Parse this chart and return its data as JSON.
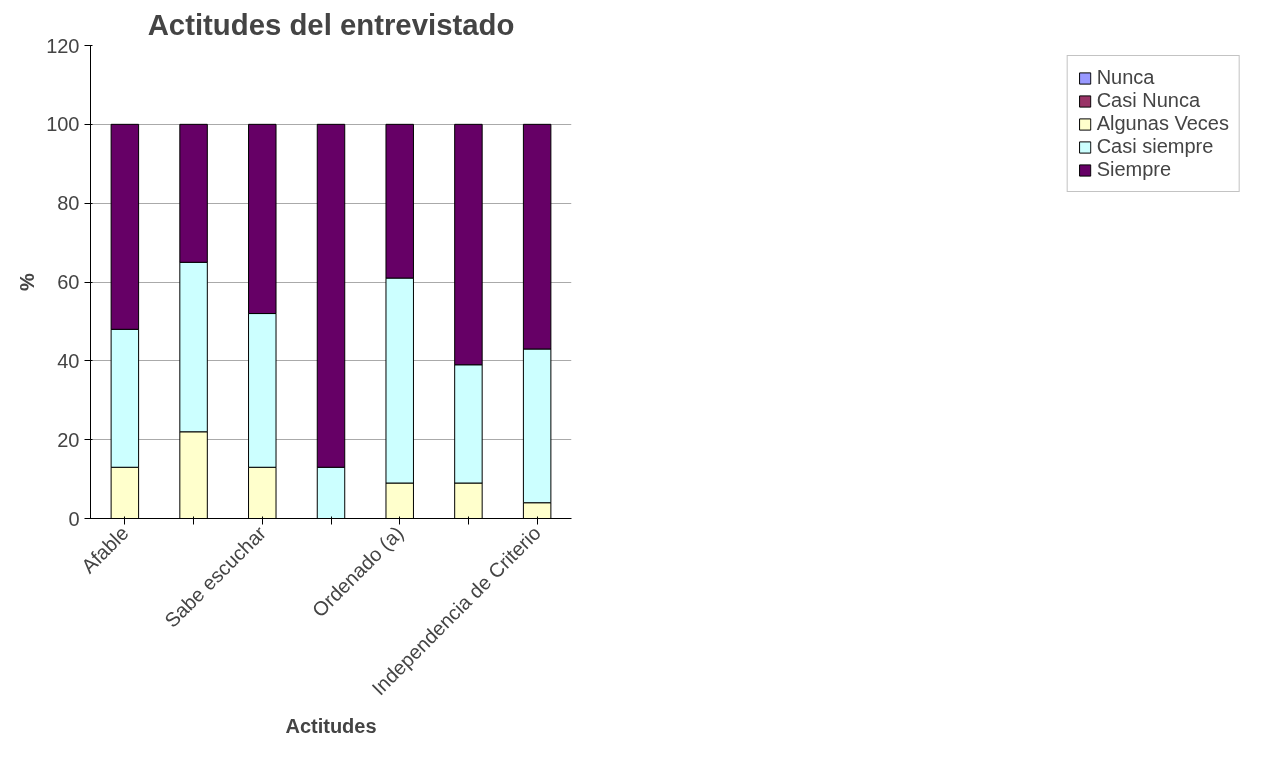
{
  "chart_data": {
    "type": "bar",
    "stacked": true,
    "title": "Actitudes del entrevistado",
    "xlabel": "Actitudes",
    "ylabel": "%",
    "categories": [
      "Afable",
      null,
      "Sabe escuchar",
      null,
      "Ordenado (a)",
      null,
      "Independencia de Criterio"
    ],
    "series": [
      {
        "name": "Nunca",
        "color": "#9999ff",
        "values": [
          0,
          0,
          0,
          0,
          0,
          0,
          0
        ]
      },
      {
        "name": "Casi Nunca",
        "color": "#993366",
        "values": [
          0,
          0,
          0,
          0,
          0,
          0,
          0
        ]
      },
      {
        "name": "Algunas Veces",
        "color": "#ffffcc",
        "values": [
          13,
          22,
          13,
          0,
          9,
          9,
          4
        ]
      },
      {
        "name": "Casi siempre",
        "color": "#ccffff",
        "values": [
          35,
          43,
          39,
          13,
          52,
          30,
          39
        ]
      },
      {
        "name": "Siempre",
        "color": "#660066",
        "values": [
          52,
          35,
          48,
          87,
          39,
          61,
          57
        ]
      }
    ],
    "ylim": [
      0,
      120
    ],
    "yticks": [
      0,
      20,
      40,
      60,
      80,
      100,
      120
    ],
    "grid": "y",
    "legend": "right"
  }
}
